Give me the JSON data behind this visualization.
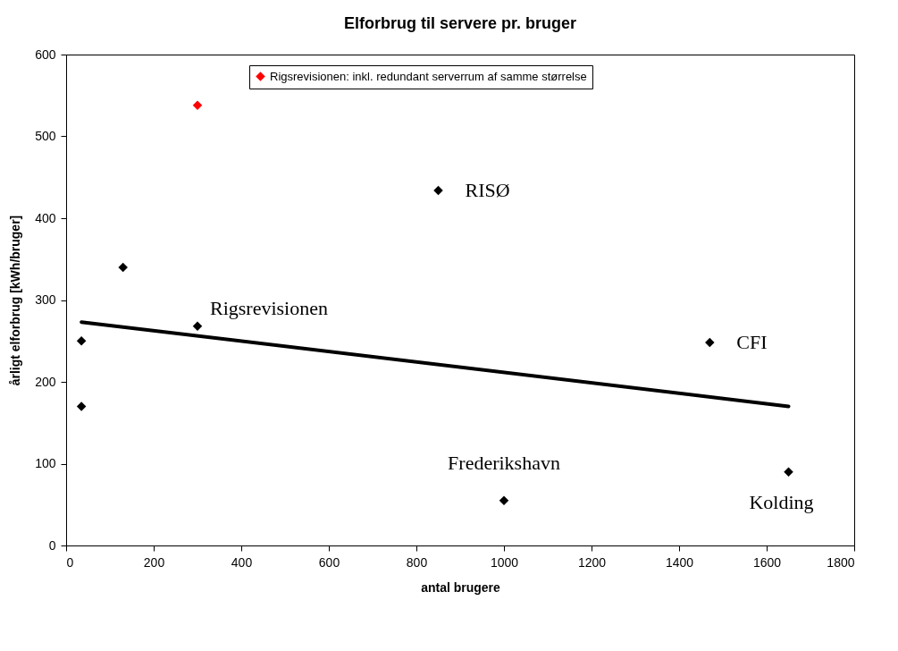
{
  "chart_data": {
    "type": "scatter",
    "title": "Elforbrug til servere pr. bruger",
    "xlabel": "antal brugere",
    "ylabel": "årligt elforbrug [kWh/bruger]",
    "xlim": [
      0,
      1800
    ],
    "xticks": [
      0,
      200,
      400,
      600,
      800,
      1000,
      1200,
      1400,
      1600,
      1800
    ],
    "ylim": [
      0,
      600
    ],
    "yticks": [
      0,
      100,
      200,
      300,
      400,
      500,
      600
    ],
    "grid": false,
    "legend": "top",
    "marker": "diamond",
    "series": [
      {
        "color": "#000000",
        "x": [
          35,
          35,
          130,
          300,
          850,
          1000,
          1470,
          1650
        ],
        "values": [
          170,
          250,
          340,
          268,
          434,
          55,
          248,
          90
        ]
      },
      {
        "name": "Rigsrevisionen: inkl. redundant serverrum af samme størrelse",
        "color": "#ff0000",
        "x": [
          300
        ],
        "values": [
          538
        ]
      },
      {
        "type": "line",
        "marker": "none",
        "color": "#000000",
        "x": [
          35,
          1650
        ],
        "values": [
          273,
          170
        ]
      }
    ],
    "annotations": [
      {
        "text": "RISØ",
        "x": 850,
        "y": 434
      },
      {
        "text": "Rigsrevisionen",
        "x": 300,
        "y": 268
      },
      {
        "text": "CFI",
        "x": 1470,
        "y": 248
      },
      {
        "text": "Frederikshavn",
        "x": 1000,
        "y": 55
      },
      {
        "text": "Kolding",
        "x": 1650,
        "y": 90
      }
    ]
  }
}
